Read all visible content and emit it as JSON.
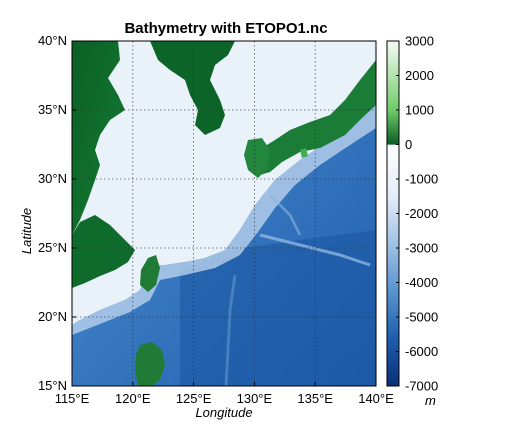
{
  "chart_data": {
    "type": "heatmap",
    "title": "Bathymetry with ETOPO1.nc",
    "xlabel": "Longitude",
    "ylabel": "Latitude",
    "x_ticks": [
      "115°E",
      "120°E",
      "125°E",
      "130°E",
      "135°E",
      "140°E"
    ],
    "y_ticks": [
      "40°N",
      "35°N",
      "30°N",
      "25°N",
      "20°N",
      "15°N"
    ],
    "xlim": [
      115,
      140
    ],
    "ylim": [
      15,
      40
    ],
    "grid": true,
    "colorbar": {
      "unit": "m",
      "range": [
        -7000,
        3000
      ],
      "ticks": [
        "3000",
        "2000",
        "1000",
        "0",
        "-1000",
        "-2000",
        "-3000",
        "-4000",
        "-5000",
        "-6000",
        "-7000"
      ],
      "tick_values": [
        3000,
        2000,
        1000,
        0,
        -1000,
        -2000,
        -3000,
        -4000,
        -5000,
        -6000,
        -7000
      ]
    },
    "colors": {
      "deep_ocean": "#0b3f8f",
      "mid_ocean": "#3e7fc4",
      "shelf": "#e9f1f9",
      "lowland": "#0d6b2a",
      "highland": "#f4fbf0"
    }
  }
}
